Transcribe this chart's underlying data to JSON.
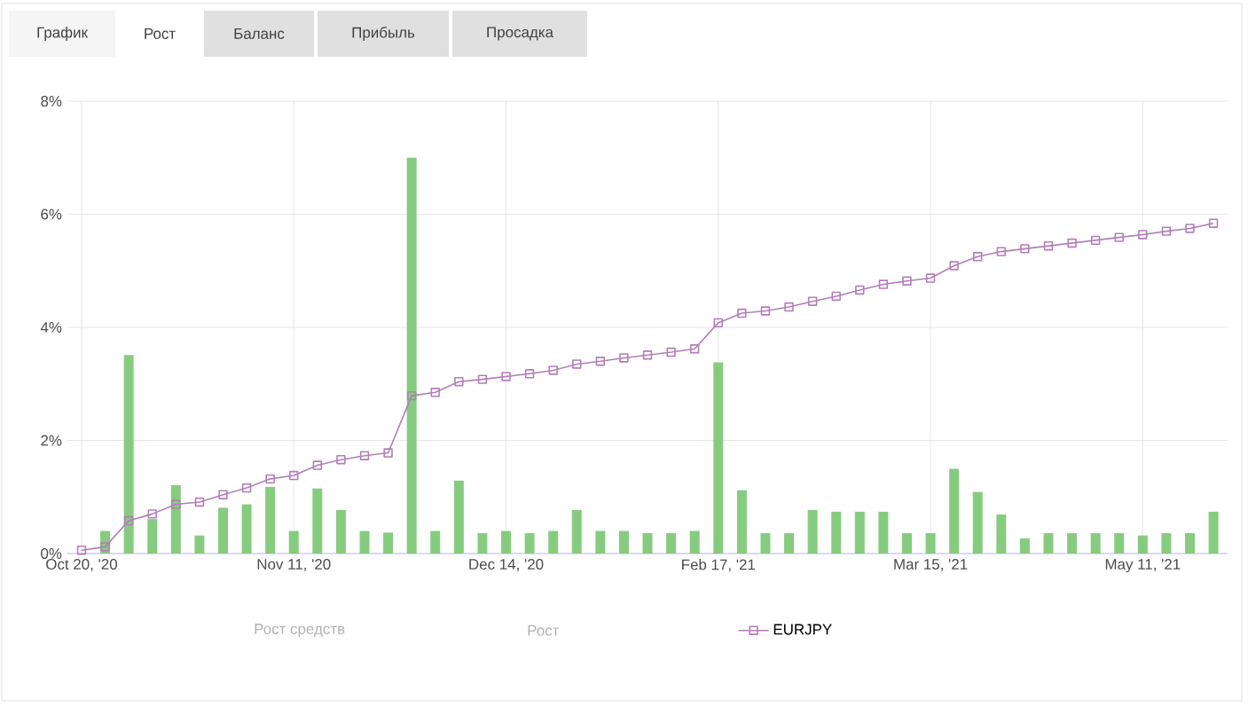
{
  "chart_data": {
    "type": "bar",
    "categories": [
      "Oct 20, '20",
      null,
      null,
      null,
      null,
      null,
      null,
      null,
      null,
      "Nov 11, '20",
      null,
      null,
      null,
      null,
      null,
      null,
      null,
      null,
      "Dec 14, '20",
      null,
      null,
      null,
      null,
      null,
      null,
      null,
      null,
      "Feb 17, '21",
      null,
      null,
      null,
      null,
      null,
      null,
      null,
      null,
      "Mar 15, '21",
      null,
      null,
      null,
      null,
      null,
      null,
      null,
      null,
      "May 11, '21",
      null,
      null,
      null
    ],
    "series": [
      {
        "color": "#86cc7f",
        "values": [
          null,
          0.4,
          3.51,
          0.61,
          1.21,
          0.32,
          0.81,
          0.87,
          1.18,
          0.4,
          1.15,
          0.77,
          0.4,
          0.37,
          7.0,
          0.4,
          1.29,
          0.36,
          0.4,
          0.36,
          0.4,
          0.77,
          0.4,
          0.4,
          0.36,
          0.36,
          0.4,
          3.38,
          1.12,
          0.36,
          0.36,
          0.77,
          0.74,
          0.74,
          0.74,
          0.36,
          0.36,
          1.5,
          1.09,
          0.69,
          0.27,
          0.36,
          0.36,
          0.36,
          0.36,
          0.32,
          0.36,
          0.36,
          0.74
        ]
      },
      {
        "type": "line",
        "name": "EURJPY",
        "color": "#b27eb8",
        "marker": "square",
        "values": [
          0.06,
          0.12,
          0.58,
          0.7,
          0.87,
          0.91,
          1.04,
          1.16,
          1.32,
          1.38,
          1.56,
          1.66,
          1.73,
          1.78,
          2.79,
          2.85,
          3.04,
          3.08,
          3.13,
          3.18,
          3.24,
          3.35,
          3.4,
          3.46,
          3.51,
          3.56,
          3.62,
          4.08,
          4.25,
          4.29,
          4.36,
          4.46,
          4.55,
          4.66,
          4.76,
          4.82,
          4.87,
          5.09,
          5.25,
          5.34,
          5.39,
          5.44,
          5.49,
          5.54,
          5.59,
          5.64,
          5.7,
          5.75,
          5.84
        ]
      }
    ],
    "ylim": [
      0,
      8
    ],
    "yticks": [
      {
        "value": 0,
        "label": "0%"
      },
      {
        "value": 2,
        "label": "2%"
      },
      {
        "value": 4,
        "label": "4%"
      },
      {
        "value": 6,
        "label": "6%"
      },
      {
        "value": 8,
        "label": "8%"
      }
    ],
    "grid": true,
    "legend": "bottom",
    "annotations": [
      "График",
      "Рост",
      "Баланс",
      "Прибыль",
      "Просадка",
      "Рост средств",
      "Рост"
    ]
  }
}
